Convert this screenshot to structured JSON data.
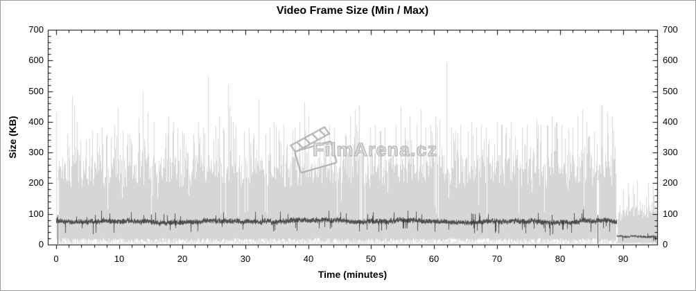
{
  "title": "Video Frame Size (Min / Max)",
  "axes": {
    "x_label": "Time (minutes)",
    "y_left_label": "Size (KB)",
    "x_tick_labels": [
      "0",
      "10",
      "20",
      "30",
      "40",
      "50",
      "60",
      "70",
      "80",
      "90"
    ],
    "y_tick_labels": [
      "0",
      "100",
      "200",
      "300",
      "400",
      "500",
      "600",
      "700"
    ]
  },
  "watermark": {
    "text": "FilmArena.cz",
    "icon": "clapperboard-icon"
  },
  "chart_data": {
    "type": "area",
    "subtype": "min-max-range-with-average-line",
    "title": "Video Frame Size (Min / Max)",
    "xlabel": "Time (minutes)",
    "ylabel": "Size (KB)",
    "x_unit": "minutes",
    "y_unit": "KB",
    "x_range": [
      0,
      95.4
    ],
    "y_range": [
      0,
      700
    ],
    "x_major_step": 10,
    "x_minor_step": 2,
    "y_major_step": 100,
    "y_minor_step": 20,
    "grid": false,
    "legend": "none",
    "minutes_resolution": 1,
    "series": {
      "max_typical": [
        310,
        320,
        305,
        315,
        300,
        310,
        320,
        305,
        315,
        325,
        300,
        310,
        315,
        305,
        320,
        310,
        300,
        315,
        310,
        305,
        320,
        300,
        310,
        315,
        330,
        310,
        305,
        320,
        310,
        300,
        315,
        305,
        310,
        320,
        305,
        315,
        300,
        310,
        320,
        325,
        310,
        305,
        315,
        300,
        310,
        305,
        320,
        330,
        325,
        310,
        305,
        315,
        310,
        320,
        315,
        305,
        310,
        325,
        315,
        310,
        320,
        335,
        310,
        305,
        315,
        320,
        310,
        315,
        305,
        320,
        315,
        310,
        320,
        310,
        315,
        325,
        310,
        315,
        330,
        320,
        310,
        315,
        325,
        335,
        320,
        310,
        330,
        325,
        315,
        120,
        140,
        130,
        150,
        140,
        130,
        140
      ],
      "max_peak": [
        430,
        360,
        485,
        400,
        380,
        370,
        365,
        380,
        360,
        445,
        370,
        360,
        380,
        500,
        430,
        400,
        380,
        420,
        400,
        380,
        370,
        360,
        400,
        380,
        550,
        420,
        380,
        520,
        400,
        370,
        380,
        360,
        475,
        380,
        400,
        370,
        390,
        380,
        400,
        465,
        420,
        380,
        370,
        390,
        380,
        360,
        420,
        440,
        455,
        380,
        390,
        370,
        380,
        390,
        450,
        380,
        420,
        440,
        380,
        390,
        420,
        595,
        380,
        370,
        390,
        400,
        380,
        390,
        380,
        400,
        390,
        380,
        400,
        380,
        390,
        410,
        410,
        390,
        420,
        400,
        390,
        380,
        420,
        440,
        400,
        390,
        455,
        430,
        420,
        180,
        200,
        190,
        210,
        200,
        190,
        200
      ],
      "average": [
        78,
        76,
        75,
        77,
        74,
        76,
        75,
        78,
        76,
        75,
        74,
        77,
        75,
        76,
        78,
        75,
        74,
        76,
        77,
        75,
        76,
        74,
        75,
        77,
        78,
        76,
        75,
        74,
        76,
        75,
        77,
        76,
        75,
        78,
        74,
        76,
        75,
        77,
        76,
        75,
        74,
        76,
        77,
        75,
        78,
        76,
        75,
        74,
        76,
        77,
        75,
        76,
        74,
        75,
        78,
        76,
        77,
        75,
        74,
        76,
        75,
        78,
        76,
        75,
        77,
        74,
        76,
        75,
        77,
        76,
        75,
        74,
        77,
        76,
        75,
        78,
        76,
        75,
        74,
        76,
        77,
        75,
        76,
        78,
        75,
        74,
        76,
        75,
        72,
        26,
        25,
        27,
        26,
        25,
        26,
        25
      ],
      "min": [
        14,
        15,
        13,
        14,
        15,
        14,
        13,
        15,
        14,
        14,
        15,
        13,
        14,
        15,
        14,
        13,
        15,
        14,
        14,
        15,
        13,
        14,
        15,
        14,
        14,
        13,
        15,
        14,
        15,
        14,
        13,
        14,
        15,
        14,
        13,
        15,
        14,
        15,
        13,
        14,
        14,
        15,
        13,
        14,
        15,
        14,
        15,
        13,
        14,
        15,
        14,
        13,
        15,
        14,
        14,
        13,
        15,
        14,
        15,
        14,
        13,
        14,
        15,
        14,
        13,
        15,
        14,
        14,
        15,
        13,
        14,
        15,
        14,
        13,
        15,
        14,
        15,
        13,
        14,
        15,
        14,
        13,
        15,
        14,
        14,
        15,
        13,
        14,
        12,
        5,
        6,
        5,
        6,
        5,
        6,
        5
      ]
    },
    "notable_spikes": [
      {
        "t": 0.1,
        "v": 430
      },
      {
        "t": 2.3,
        "v": 485
      },
      {
        "t": 9.8,
        "v": 445
      },
      {
        "t": 13.7,
        "v": 500
      },
      {
        "t": 24.3,
        "v": 550
      },
      {
        "t": 27.6,
        "v": 520
      },
      {
        "t": 32.9,
        "v": 475
      },
      {
        "t": 39.2,
        "v": 465
      },
      {
        "t": 48.3,
        "v": 455
      },
      {
        "t": 54.7,
        "v": 450
      },
      {
        "t": 60.9,
        "v": 595
      },
      {
        "t": 86.3,
        "v": 455
      }
    ],
    "dips": [
      {
        "t": 0.18,
        "v": 0,
        "dark": true
      },
      {
        "t": 10.4,
        "v": 150
      },
      {
        "t": 21.0,
        "v": 160
      },
      {
        "t": 33.4,
        "v": 100
      },
      {
        "t": 45.2,
        "v": 140
      },
      {
        "t": 52.6,
        "v": 170
      },
      {
        "t": 62.3,
        "v": 150
      },
      {
        "t": 75.5,
        "v": 170
      },
      {
        "t": 81.2,
        "v": 180
      },
      {
        "t": 85.9,
        "v": 0,
        "dark": true
      },
      {
        "t": 88.85,
        "v": 15
      },
      {
        "t": 89.0,
        "v": 8
      }
    ],
    "sections": [
      {
        "name": "main-feature",
        "t_start": 0,
        "t_end": 88.9
      },
      {
        "name": "end-credits",
        "t_start": 88.9,
        "t_end": 95.4
      }
    ],
    "colors": {
      "range_area": "#d6d6d6",
      "min_texture": "#e7e7e7",
      "average_line": "#525252",
      "dark_spike": "#3c3c3c",
      "frame": "#000000",
      "background": "#ffffff"
    }
  }
}
